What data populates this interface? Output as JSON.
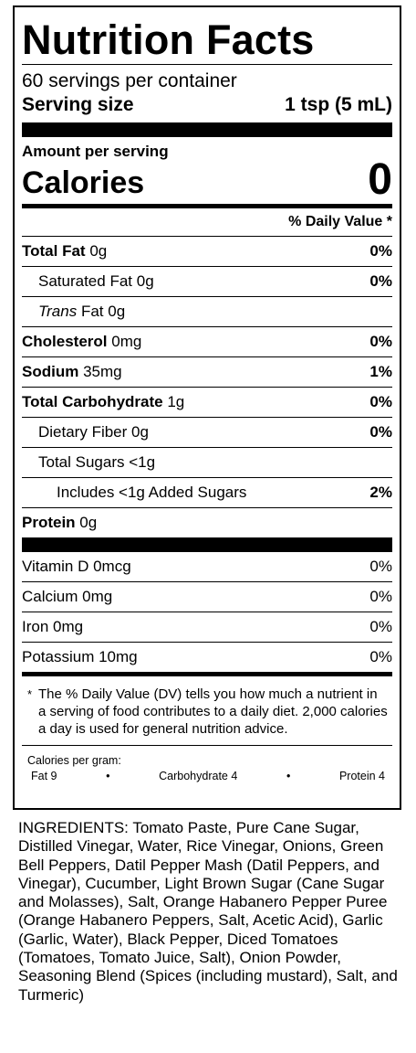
{
  "title": "Nutrition Facts",
  "servings_per_container": "60 servings per container",
  "serving_size_label": "Serving size",
  "serving_size_value": "1 tsp (5 mL)",
  "amount_per_serving": "Amount per serving",
  "calories_label": "Calories",
  "calories_value": "0",
  "dv_header": "% Daily Value *",
  "nutrients": [
    {
      "name": "Total Fat",
      "amount": "0g",
      "dv": "0%"
    },
    {
      "name": "Saturated Fat",
      "amount": "0g",
      "dv": "0%"
    },
    {
      "name": "Trans",
      "name_suffix": "Fat",
      "amount": "0g",
      "dv": ""
    },
    {
      "name": "Cholesterol",
      "amount": "0mg",
      "dv": "0%"
    },
    {
      "name": "Sodium",
      "amount": "35mg",
      "dv": "1%"
    },
    {
      "name": "Total Carbohydrate",
      "amount": "1g",
      "dv": "0%"
    },
    {
      "name": "Dietary Fiber",
      "amount": "0g",
      "dv": "0%"
    },
    {
      "name": "Total Sugars",
      "amount": "<1g",
      "dv": ""
    },
    {
      "name": "Includes <1g Added Sugars",
      "amount": "",
      "dv": "2%"
    },
    {
      "name": "Protein",
      "amount": "0g",
      "dv": ""
    }
  ],
  "vitamins": [
    {
      "name": "Vitamin D 0mcg",
      "dv": "0%"
    },
    {
      "name": "Calcium 0mg",
      "dv": "0%"
    },
    {
      "name": "Iron 0mg",
      "dv": "0%"
    },
    {
      "name": "Potassium 10mg",
      "dv": "0%"
    }
  ],
  "footnote_star": "*",
  "footnote_text": "The % Daily Value (DV) tells you how much a nutrient in a serving of food contributes to a daily diet. 2,000 calories a day is used for general nutrition advice.",
  "calories_per_gram_label": "Calories per gram:",
  "calories_per_gram": {
    "fat": "Fat 9",
    "carb": "Carbohydrate 4",
    "protein": "Protein 4",
    "bullet": "•"
  },
  "ingredients": "INGREDIENTS: Tomato Paste, Pure Cane Sugar, Distilled Vinegar, Water, Rice Vinegar, Onions, Green Bell Peppers, Datil Pepper Mash (Datil Peppers, and Vinegar), Cucumber, Light Brown Sugar (Cane Sugar and Molasses), Salt, Orange Habanero Pepper Puree (Orange Habanero Peppers, Salt, Acetic Acid), Garlic (Garlic, Water), Black Pepper, Diced Tomatoes (Tomatoes, Tomato Juice, Salt), Onion Powder, Seasoning Blend (Spices (including mustard), Salt, and Turmeric)"
}
